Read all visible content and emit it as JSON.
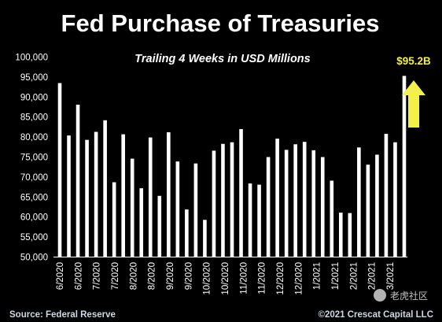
{
  "chart_data": {
    "type": "bar",
    "title": "Fed Purchase of Treasuries",
    "subtitle": "Trailing 4 Weeks in USD Millions",
    "ylim": [
      50000,
      100000
    ],
    "y_ticks": [
      "50,000",
      "55,000",
      "60,000",
      "65,000",
      "70,000",
      "75,000",
      "80,000",
      "85,000",
      "90,000",
      "95,000",
      "100,000"
    ],
    "x_tick_labels": [
      "6/2020",
      "6/2020",
      "7/2020",
      "7/2020",
      "8/2020",
      "8/2020",
      "9/2020",
      "9/2020",
      "10/2020",
      "10/2020",
      "11/2020",
      "11/2020",
      "12/2020",
      "12/2020",
      "1/2021",
      "1/2021",
      "2/2021",
      "2/2021",
      "3/2021"
    ],
    "values": [
      93400,
      80300,
      88000,
      79200,
      81200,
      84100,
      68600,
      80600,
      74500,
      67100,
      79800,
      65200,
      81100,
      73800,
      61800,
      73300,
      59200,
      76500,
      78200,
      78600,
      81900,
      68300,
      68000,
      74900,
      79500,
      76700,
      78100,
      78700,
      76600,
      74900,
      69000,
      61000,
      60900,
      77300,
      73000,
      75500,
      80700,
      78600,
      95200
    ],
    "bar_color": "#ffffff",
    "annotation": {
      "text": "$95.2B",
      "color": "#f4f04a"
    },
    "grid": false,
    "legend": "none"
  },
  "footer": {
    "source": "Source: Federal Reserve",
    "copyright": "©2021 Crescat Capital LLC"
  },
  "watermark": "老虎社区"
}
